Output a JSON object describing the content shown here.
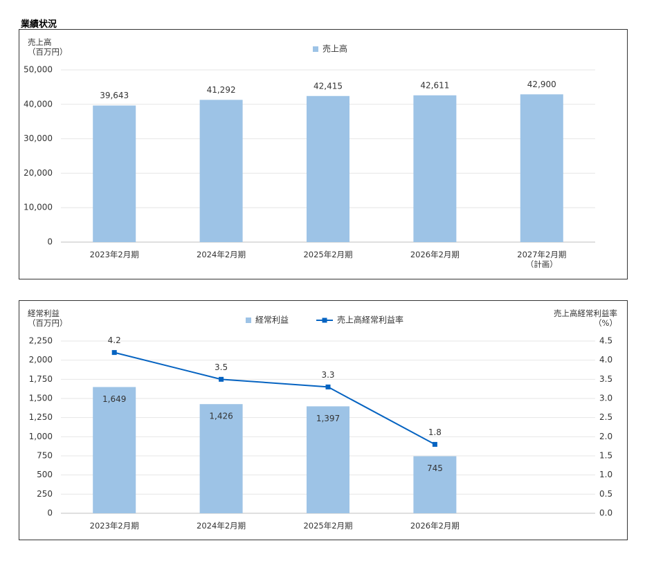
{
  "heading": "業績状況",
  "chart_data": [
    {
      "type": "bar",
      "ylabel": "売上高\n（百万円）",
      "categories": [
        "2023年2月期",
        "2024年2月期",
        "2025年2月期",
        "2026年2月期",
        "2027年2月期\n（計画）"
      ],
      "series": [
        {
          "name": "売上高",
          "type": "bar",
          "color": "#9dc3e6",
          "values": [
            39643,
            41292,
            42415,
            42611,
            42900
          ],
          "value_labels": [
            "39,643",
            "41,292",
            "42,415",
            "42,611",
            "42,900"
          ]
        }
      ],
      "label_position": "outside",
      "ylim": [
        0,
        50000
      ],
      "yticks": [
        0,
        {
          "value": 10000,
          "label": "10,000"
        },
        {
          "value": 20000,
          "label": "20,000"
        },
        {
          "value": 30000,
          "label": "30,000"
        },
        {
          "value": 40000,
          "label": "40,000"
        },
        {
          "value": 50000,
          "label": "50,000"
        }
      ],
      "grid": true,
      "legend": "top"
    },
    {
      "type": "combo",
      "ylabel": "経常利益\n（百万円）",
      "y2label": "売上高経常利益率\n（%）",
      "categories": [
        "2023年2月期",
        "2024年2月期",
        "2025年2月期",
        "2026年2月期",
        null
      ],
      "series": [
        {
          "name": "経常利益",
          "type": "bar",
          "color": "#9dc3e6",
          "values": [
            1649,
            1426,
            1397,
            745,
            null
          ],
          "value_labels": [
            "1,649",
            "1,426",
            "1,397",
            "745",
            null
          ]
        },
        {
          "name": "売上高経常利益率",
          "type": "line",
          "axis": "y2",
          "color": "#0563c1",
          "values": [
            4.2,
            3.5,
            3.3,
            1.8,
            null
          ]
        }
      ],
      "label_position": "inside",
      "ylim": [
        0,
        2250
      ],
      "yticks": [
        0,
        250,
        500,
        750,
        {
          "value": 1000,
          "label": "1,000"
        },
        {
          "value": 1250,
          "label": "1,250"
        },
        {
          "value": 1500,
          "label": "1,500"
        },
        {
          "value": 1750,
          "label": "1,750"
        },
        {
          "value": 2000,
          "label": "2,000"
        },
        {
          "value": 2250,
          "label": "2,250"
        }
      ],
      "y2lim": [
        0,
        4.5
      ],
      "y2ticks": [
        {
          "value": 0,
          "label": "0.0"
        },
        0.5,
        {
          "value": 1,
          "label": "1.0"
        },
        1.5,
        {
          "value": 2,
          "label": "2.0"
        },
        2.5,
        {
          "value": 3,
          "label": "3.0"
        },
        3.5,
        {
          "value": 4,
          "label": "4.0"
        },
        4.5
      ],
      "grid": true,
      "legend": "top"
    }
  ]
}
